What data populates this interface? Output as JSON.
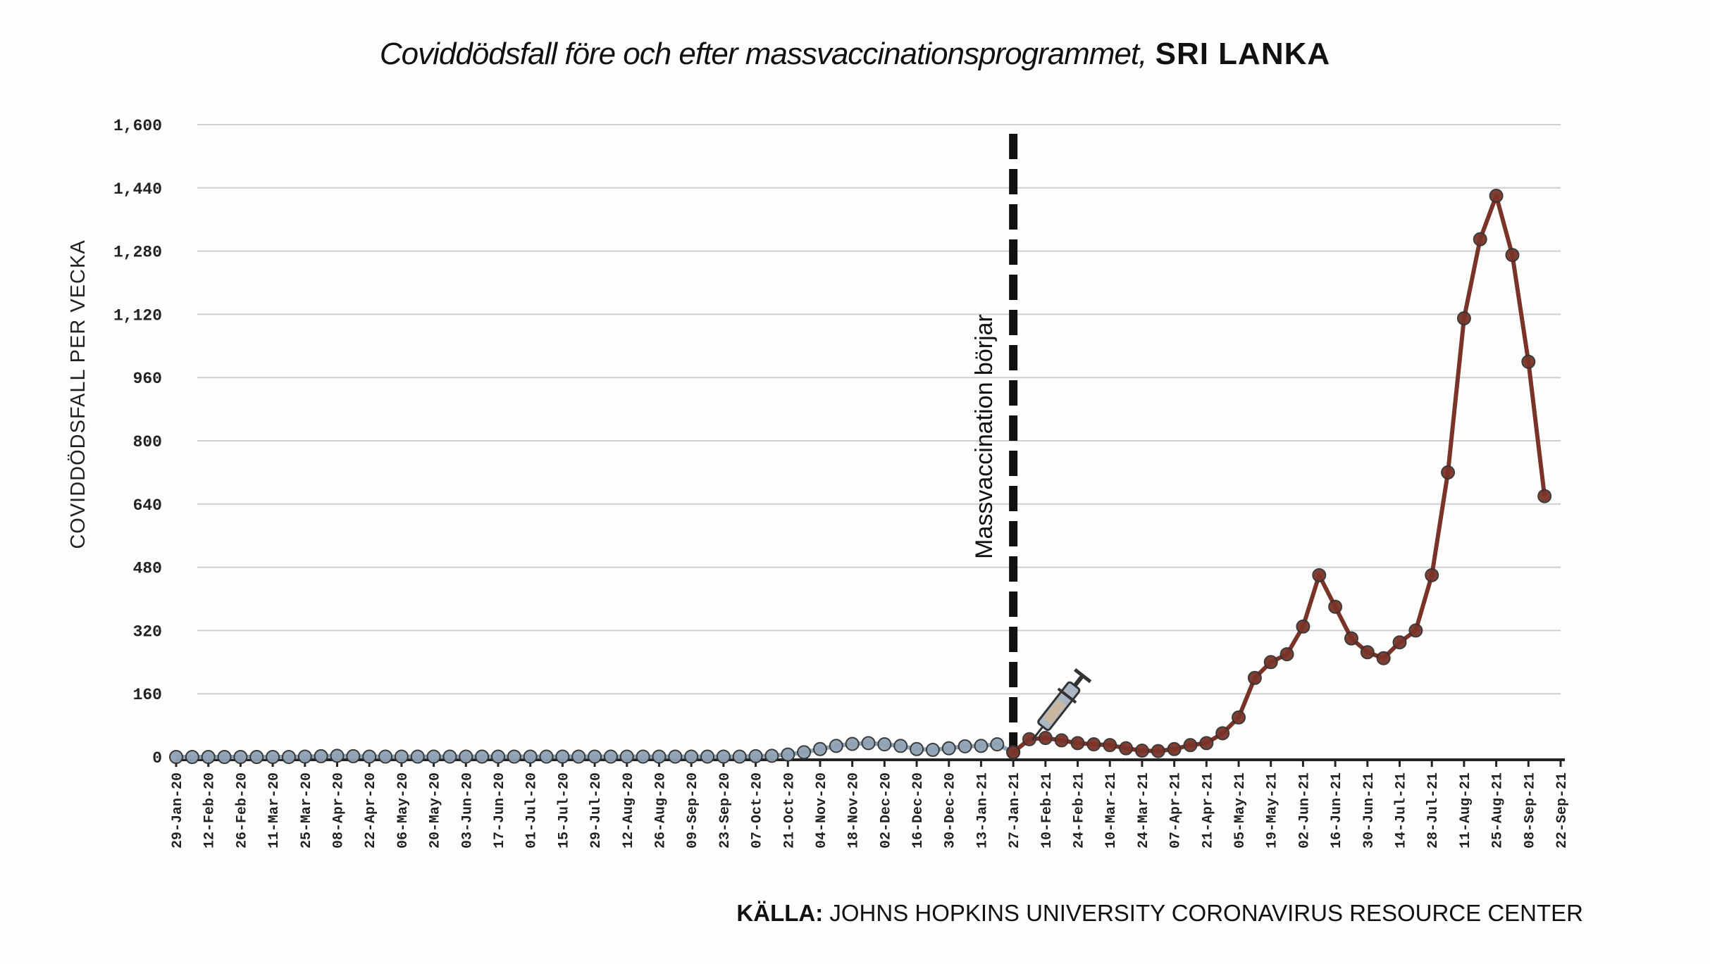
{
  "title_part1": "Coviddödsfall före och efter massvaccinationsprogrammet,",
  "title_part2": "SRI LANKA",
  "source_label": "KÄLLA:",
  "source_text": "JOHNS HOPKINS UNIVERSITY CORONAVIRUS RESOURCE CENTER",
  "colors": {
    "before": "#8fa3b5",
    "after": "#7a3328",
    "grid": "#cfcfcf",
    "axis": "#222222"
  },
  "chart_data": {
    "type": "line",
    "title": "Coviddödsfall före och efter massvaccinationsprogrammet, SRI LANKA",
    "xlabel": "",
    "ylabel": "COVIDDÖDSFALL PER VECKA",
    "ylim": [
      0,
      1600
    ],
    "yticks": [
      0,
      160,
      320,
      480,
      640,
      800,
      960,
      1120,
      1280,
      1440,
      1600
    ],
    "ytick_labels": [
      "0",
      "160",
      "320",
      "480",
      "640",
      "800",
      "960",
      "1,120",
      "1,280",
      "1,440",
      "1,600"
    ],
    "x_tick_labels": [
      "29-Jan-20",
      "12-Feb-20",
      "26-Feb-20",
      "11-Mar-20",
      "25-Mar-20",
      "08-Apr-20",
      "22-Apr-20",
      "06-May-20",
      "20-May-20",
      "03-Jun-20",
      "17-Jun-20",
      "01-Jul-20",
      "15-Jul-20",
      "29-Jul-20",
      "12-Aug-20",
      "26-Aug-20",
      "09-Sep-20",
      "23-Sep-20",
      "07-Oct-20",
      "21-Oct-20",
      "04-Nov-20",
      "18-Nov-20",
      "02-Dec-20",
      "16-Dec-20",
      "30-Dec-20",
      "13-Jan-21",
      "27-Jan-21",
      "10-Feb-21",
      "24-Feb-21",
      "10-Mar-21",
      "24-Mar-21",
      "07-Apr-21",
      "21-Apr-21",
      "05-May-21",
      "19-May-21",
      "02-Jun-21",
      "16-Jun-21",
      "30-Jun-21",
      "14-Jul-21",
      "28-Jul-21",
      "11-Aug-21",
      "25-Aug-21",
      "08-Sep-21",
      "22-Sep-21"
    ],
    "grid": true,
    "vline": {
      "x": "27-Jan-21",
      "label": "Massvaccination börjar"
    },
    "series": [
      {
        "name": "",
        "segment": "before",
        "x": [
          "29-Jan-20",
          "05-Feb-20",
          "12-Feb-20",
          "19-Feb-20",
          "26-Feb-20",
          "04-Mar-20",
          "11-Mar-20",
          "18-Mar-20",
          "25-Mar-20",
          "01-Apr-20",
          "08-Apr-20",
          "15-Apr-20",
          "22-Apr-20",
          "29-Apr-20",
          "06-May-20",
          "13-May-20",
          "20-May-20",
          "27-May-20",
          "03-Jun-20",
          "10-Jun-20",
          "17-Jun-20",
          "24-Jun-20",
          "01-Jul-20",
          "08-Jul-20",
          "15-Jul-20",
          "22-Jul-20",
          "29-Jul-20",
          "05-Aug-20",
          "12-Aug-20",
          "19-Aug-20",
          "26-Aug-20",
          "02-Sep-20",
          "09-Sep-20",
          "16-Sep-20",
          "23-Sep-20",
          "30-Sep-20",
          "07-Oct-20",
          "14-Oct-20",
          "21-Oct-20",
          "28-Oct-20",
          "04-Nov-20",
          "11-Nov-20",
          "18-Nov-20",
          "25-Nov-20",
          "02-Dec-20",
          "09-Dec-20",
          "16-Dec-20",
          "23-Dec-20",
          "30-Dec-20",
          "06-Jan-21",
          "13-Jan-21",
          "20-Jan-21",
          "27-Jan-21"
        ],
        "values": [
          0,
          0,
          0,
          0,
          0,
          0,
          0,
          0,
          1,
          2,
          3,
          2,
          1,
          1,
          1,
          1,
          1,
          1,
          1,
          1,
          1,
          1,
          1,
          1,
          1,
          1,
          1,
          1,
          1,
          1,
          1,
          1,
          1,
          1,
          1,
          1,
          2,
          3,
          6,
          12,
          20,
          28,
          33,
          35,
          32,
          28,
          20,
          18,
          22,
          27,
          28,
          32,
          12
        ]
      },
      {
        "name": "",
        "segment": "after",
        "x": [
          "27-Jan-21",
          "03-Feb-21",
          "10-Feb-21",
          "17-Feb-21",
          "24-Feb-21",
          "03-Mar-21",
          "10-Mar-21",
          "17-Mar-21",
          "24-Mar-21",
          "31-Mar-21",
          "07-Apr-21",
          "14-Apr-21",
          "21-Apr-21",
          "28-Apr-21",
          "05-May-21",
          "12-May-21",
          "19-May-21",
          "26-May-21",
          "02-Jun-21",
          "09-Jun-21",
          "16-Jun-21",
          "23-Jun-21",
          "30-Jun-21",
          "07-Jul-21",
          "14-Jul-21",
          "21-Jul-21",
          "28-Jul-21",
          "04-Aug-21",
          "11-Aug-21",
          "18-Aug-21",
          "25-Aug-21",
          "01-Sep-21",
          "08-Sep-21",
          "15-Sep-21"
        ],
        "values": [
          12,
          45,
          48,
          42,
          35,
          32,
          30,
          22,
          16,
          15,
          20,
          30,
          35,
          60,
          100,
          200,
          240,
          260,
          330,
          460,
          380,
          300,
          265,
          250,
          290,
          320,
          460,
          720,
          1110,
          1310,
          1420,
          1270,
          1000,
          660
        ]
      }
    ]
  }
}
